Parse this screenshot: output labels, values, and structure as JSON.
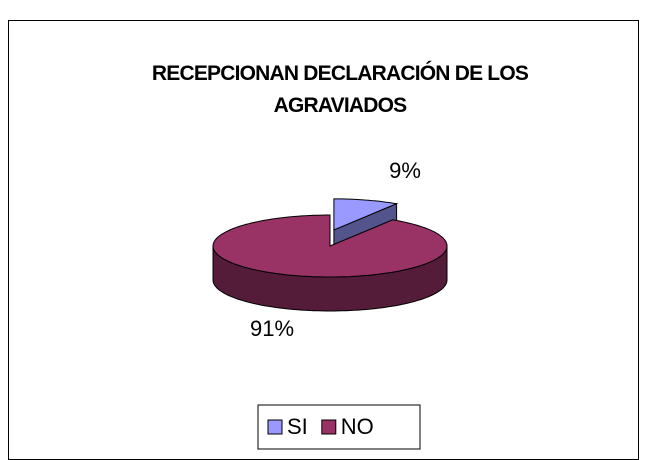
{
  "chart_data": {
    "type": "pie",
    "title": "RECEPCIONAN DECLARACIÓN DE LOS AGRAVIADOS",
    "categories": [
      "SI",
      "NO"
    ],
    "values": [
      9,
      91
    ],
    "value_labels": [
      "9%",
      "91%"
    ],
    "colors": [
      "#9999ff",
      "#993366"
    ],
    "legend": "bottom"
  }
}
